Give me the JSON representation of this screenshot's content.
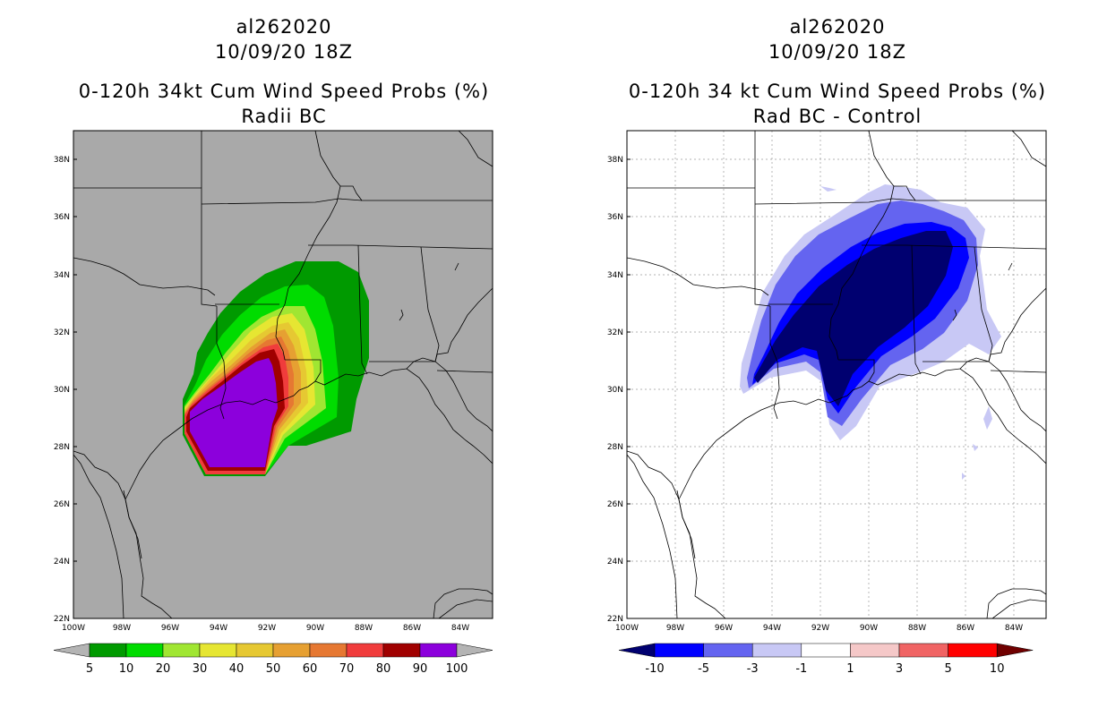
{
  "left_panel": {
    "title_storm": "al262020",
    "title_date": "10/09/20 18Z",
    "title_product": "0-120h 34kt Cum Wind Speed Probs (%)",
    "title_sub": "Radii BC",
    "lat_labels": [
      "38N",
      "36N",
      "34N",
      "32N",
      "30N",
      "28N",
      "26N",
      "24N",
      "22N"
    ],
    "lon_labels": [
      "100W",
      "98W",
      "96W",
      "94W",
      "92W",
      "90W",
      "88W",
      "86W",
      "84W"
    ],
    "colorbar": {
      "colors": [
        "#009a00",
        "#00dc00",
        "#a0e632",
        "#e6e632",
        "#e6c832",
        "#e6a032",
        "#e67832",
        "#f03c3c",
        "#a00000",
        "#8c00dc"
      ],
      "labels": [
        "5",
        "10",
        "20",
        "30",
        "40",
        "50",
        "60",
        "70",
        "80",
        "90",
        "100"
      ],
      "end_color": "#b4b4b4"
    },
    "background_color": "#a9a9a9"
  },
  "right_panel": {
    "title_storm": "al262020",
    "title_date": "10/09/20 18Z",
    "title_product": "0-120h 34 kt Cum Wind Speed Probs (%)",
    "title_sub": "Rad BC - Control",
    "lat_labels": [
      "38N",
      "36N",
      "34N",
      "32N",
      "30N",
      "28N",
      "26N",
      "24N",
      "22N"
    ],
    "lon_labels": [
      "100W",
      "98W",
      "96W",
      "94W",
      "92W",
      "90W",
      "88W",
      "86W",
      "84W"
    ],
    "colorbar": {
      "colors": [
        "#0000ff",
        "#6464f0",
        "#c8c8f5",
        "#ffffff",
        "#f5c8c8",
        "#f06464",
        "#ff0000"
      ],
      "labels": [
        "-10",
        "-5",
        "-3",
        "-1",
        "1",
        "3",
        "5",
        "10"
      ],
      "low_end_color": "#000070",
      "high_end_color": "#700000"
    },
    "background_color": "#ffffff"
  }
}
